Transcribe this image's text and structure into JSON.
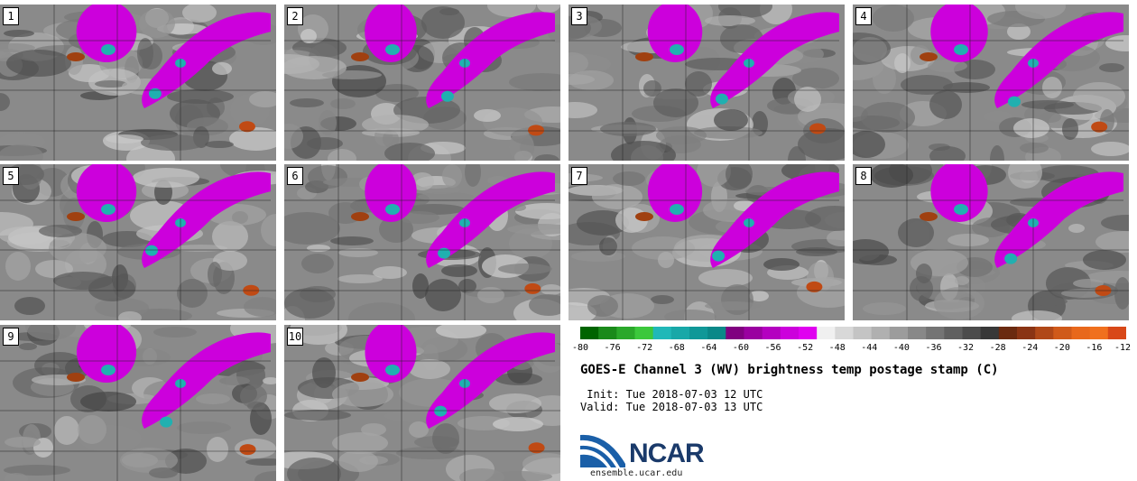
{
  "panels": [
    {
      "label": "1"
    },
    {
      "label": "2"
    },
    {
      "label": "3"
    },
    {
      "label": "4"
    },
    {
      "label": "5"
    },
    {
      "label": "6"
    },
    {
      "label": "7"
    },
    {
      "label": "8"
    },
    {
      "label": "9"
    },
    {
      "label": "10"
    }
  ],
  "colorbar": {
    "tick_labels": [
      "-80",
      "-76",
      "-72",
      "-68",
      "-64",
      "-60",
      "-56",
      "-52",
      "-48",
      "-44",
      "-40",
      "-36",
      "-32",
      "-28",
      "-24",
      "-20",
      "-16",
      "-12"
    ],
    "colors": [
      "#006400",
      "#1a8a1a",
      "#2aa82a",
      "#3cc83c",
      "#20b8b8",
      "#18a8a8",
      "#109898",
      "#0a8888",
      "#800080",
      "#9a00a0",
      "#b400c0",
      "#cc00dc",
      "#e000f0",
      "#f0f0f0",
      "#d8d8d8",
      "#c4c4c4",
      "#b0b0b0",
      "#9c9c9c",
      "#888888",
      "#747474",
      "#606060",
      "#4c4c4c",
      "#383838",
      "#6a2a10",
      "#8a3414",
      "#b04818",
      "#d05a1a",
      "#e8681c",
      "#f0701e",
      "#d84818"
    ]
  },
  "title": "GOES-E Channel 3 (WV) brightness temp postage stamp (C)",
  "init_line": " Init: Tue 2018-07-03 12 UTC",
  "valid_line": "Valid: Tue 2018-07-03 13 UTC",
  "logo": {
    "word": "NCAR",
    "url": "ensemble.ucar.edu",
    "colors": {
      "blue": "#1a5fa8",
      "navy": "#1a3a6a"
    }
  }
}
